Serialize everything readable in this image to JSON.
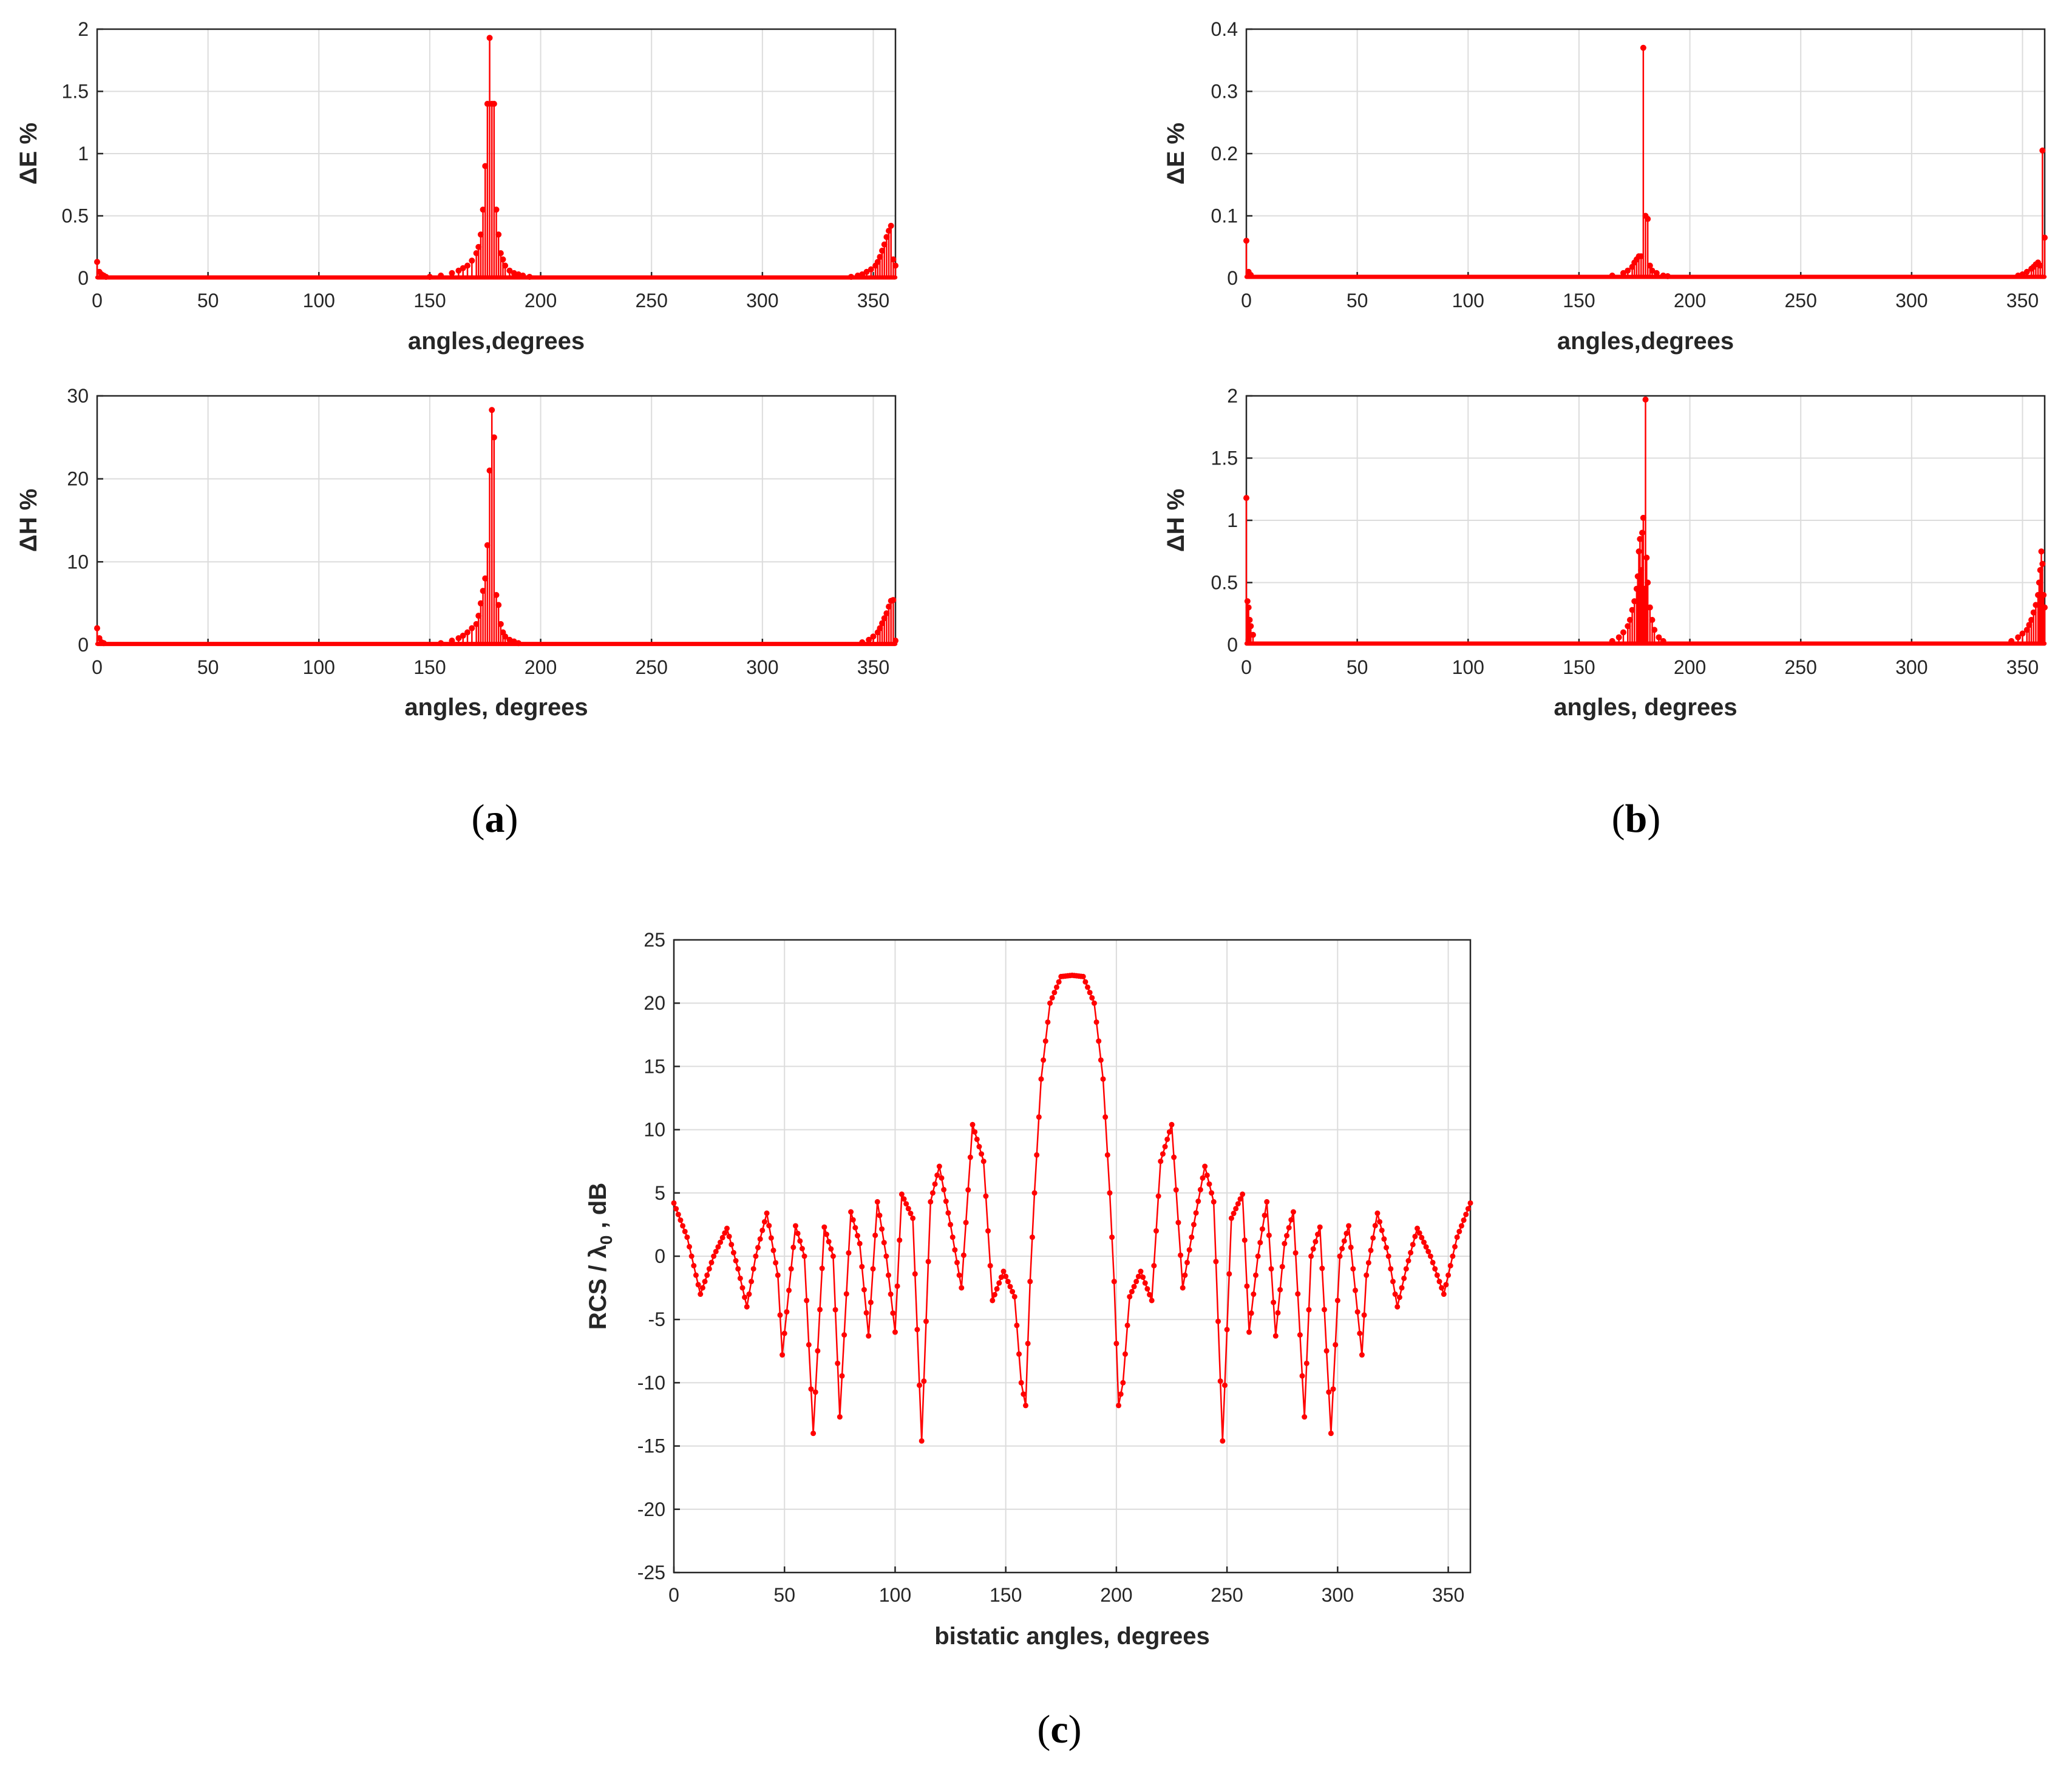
{
  "colors": {
    "series": "#ff0000",
    "grid": "#dcdcdc",
    "axis": "#262626"
  },
  "captions": {
    "a": "a",
    "b": "b",
    "c": "c"
  },
  "chart_data": [
    {
      "id": "a_top",
      "type": "stem",
      "panel": "a",
      "title": "",
      "xlabel": "angles,degrees",
      "ylabel": "ΔE %",
      "xlim": [
        0,
        360
      ],
      "ylim": [
        0,
        2
      ],
      "xticks": [
        0,
        50,
        100,
        150,
        200,
        250,
        300,
        350
      ],
      "yticks": [
        0,
        0.5,
        1,
        1.5,
        2
      ],
      "ytick_labels": [
        "0",
        "0.5",
        "1",
        "1.5",
        "2"
      ],
      "baseline": 0.005,
      "series": [
        {
          "name": "ΔE % (a)",
          "x": [
            0,
            1,
            2,
            3,
            4,
            150,
            155,
            160,
            163,
            165,
            167,
            169,
            171,
            172,
            173,
            174,
            175,
            176,
            177,
            178,
            179,
            180,
            181,
            182,
            183,
            184,
            186,
            188,
            190,
            192,
            195,
            340,
            343,
            345,
            347,
            349,
            351,
            352,
            353,
            354,
            355,
            356,
            357,
            358,
            359,
            360
          ],
          "y": [
            0.13,
            0.05,
            0.03,
            0.02,
            0.01,
            0.01,
            0.02,
            0.04,
            0.06,
            0.08,
            0.1,
            0.14,
            0.2,
            0.25,
            0.35,
            0.55,
            0.9,
            1.4,
            1.93,
            1.4,
            1.4,
            0.55,
            0.35,
            0.2,
            0.15,
            0.1,
            0.06,
            0.04,
            0.03,
            0.02,
            0.01,
            0.01,
            0.02,
            0.03,
            0.05,
            0.07,
            0.1,
            0.13,
            0.17,
            0.22,
            0.27,
            0.33,
            0.38,
            0.42,
            0.15,
            0.1
          ]
        }
      ]
    },
    {
      "id": "a_bottom",
      "type": "stem",
      "panel": "a",
      "title": "",
      "xlabel": "angles, degrees",
      "ylabel": "ΔH %",
      "xlim": [
        0,
        360
      ],
      "ylim": [
        0,
        30
      ],
      "xticks": [
        0,
        50,
        100,
        150,
        200,
        250,
        300,
        350
      ],
      "yticks": [
        0,
        10,
        20,
        30
      ],
      "ytick_labels": [
        "0",
        "10",
        "20",
        "30"
      ],
      "baseline": 0.1,
      "series": [
        {
          "name": "ΔH % (a)",
          "x": [
            0,
            1,
            2,
            3,
            155,
            160,
            163,
            165,
            167,
            169,
            171,
            172,
            173,
            174,
            175,
            176,
            177,
            178,
            179,
            180,
            181,
            182,
            183,
            184,
            186,
            188,
            190,
            345,
            348,
            350,
            352,
            353,
            354,
            355,
            356,
            357,
            358,
            359,
            360
          ],
          "y": [
            2,
            0.8,
            0.3,
            0.2,
            0.2,
            0.5,
            0.8,
            1.1,
            1.5,
            2,
            2.5,
            3.5,
            5,
            6.5,
            8,
            12,
            21,
            28.3,
            25,
            6,
            4.8,
            2.5,
            1.5,
            1,
            0.6,
            0.4,
            0.2,
            0.3,
            0.6,
            1,
            1.5,
            2,
            2.6,
            3.2,
            3.8,
            4.6,
            5.3,
            5.4,
            0.5
          ]
        }
      ]
    },
    {
      "id": "b_top",
      "type": "stem",
      "panel": "b",
      "title": "",
      "xlabel": "angles,degrees",
      "ylabel": "ΔE %",
      "xlim": [
        0,
        360
      ],
      "ylim": [
        0,
        0.4
      ],
      "xticks": [
        0,
        50,
        100,
        150,
        200,
        250,
        300,
        350
      ],
      "yticks": [
        0,
        0.1,
        0.2,
        0.3,
        0.4
      ],
      "ytick_labels": [
        "0",
        "0.1",
        "0.2",
        "0.3",
        "0.4"
      ],
      "baseline": 0.002,
      "series": [
        {
          "name": "ΔE % (b)",
          "x": [
            0,
            1,
            2,
            165,
            170,
            172,
            174,
            175,
            176,
            177,
            178,
            179,
            180,
            181,
            182,
            183,
            185,
            188,
            190,
            348,
            350,
            352,
            354,
            355,
            356,
            357,
            358,
            359,
            360
          ],
          "y": [
            0.06,
            0.01,
            0.005,
            0.004,
            0.008,
            0.012,
            0.018,
            0.025,
            0.03,
            0.035,
            0.035,
            0.37,
            0.1,
            0.095,
            0.02,
            0.012,
            0.008,
            0.004,
            0.003,
            0.004,
            0.006,
            0.01,
            0.015,
            0.018,
            0.022,
            0.025,
            0.02,
            0.205,
            0.065
          ]
        }
      ]
    },
    {
      "id": "b_bottom",
      "type": "stem",
      "panel": "b",
      "title": "",
      "xlabel": "angles, degrees",
      "ylabel": "ΔH %",
      "xlim": [
        0,
        360
      ],
      "ylim": [
        0,
        2
      ],
      "xticks": [
        0,
        50,
        100,
        150,
        200,
        250,
        300,
        350
      ],
      "yticks": [
        0,
        0.5,
        1,
        1.5,
        2
      ],
      "ytick_labels": [
        "0",
        "0.5",
        "1",
        "1.5",
        "2"
      ],
      "baseline": 0.01,
      "series": [
        {
          "name": "ΔH % (b)",
          "x": [
            0,
            0.5,
            1,
            1.5,
            2,
            3,
            165,
            168,
            170,
            172,
            173,
            174,
            175,
            176,
            176.5,
            177,
            177.5,
            178,
            178.5,
            179,
            179.5,
            180,
            180.5,
            181,
            182,
            183,
            184,
            186,
            188,
            345,
            348,
            350,
            352,
            353,
            354,
            355,
            356,
            357,
            357.5,
            358,
            358.5,
            359,
            359.5,
            360
          ],
          "y": [
            1.18,
            0.35,
            0.3,
            0.2,
            0.15,
            0.08,
            0.03,
            0.06,
            0.1,
            0.15,
            0.2,
            0.28,
            0.35,
            0.45,
            0.55,
            0.75,
            0.85,
            0.6,
            0.9,
            1.02,
            0.45,
            1.97,
            0.7,
            0.5,
            0.3,
            0.2,
            0.12,
            0.06,
            0.03,
            0.03,
            0.06,
            0.09,
            0.12,
            0.16,
            0.2,
            0.26,
            0.32,
            0.4,
            0.5,
            0.6,
            0.75,
            0.65,
            0.4,
            0.3
          ]
        }
      ]
    },
    {
      "id": "c",
      "type": "line",
      "panel": "c",
      "title": "",
      "xlabel": "bistatic angles, degrees",
      "ylabel": "RCS / λ",
      "ylabel_sub": "0",
      "ylabel_suffix": ", dB",
      "xlim": [
        0,
        360
      ],
      "ylim": [
        -25,
        25
      ],
      "xticks": [
        0,
        50,
        100,
        150,
        200,
        250,
        300,
        350
      ],
      "yticks": [
        -25,
        -20,
        -15,
        -10,
        -5,
        0,
        5,
        10,
        15,
        20,
        25
      ],
      "ytick_labels": [
        "-25",
        "-20",
        "-15",
        "-10",
        "-5",
        "0",
        "5",
        "10",
        "15",
        "20",
        "25"
      ],
      "sample_step_deg": 1,
      "series": [
        {
          "name": "RCS (c)",
          "x": [
            0,
            6,
            12,
            18,
            24,
            29,
            33,
            37,
            42,
            47,
            49,
            55,
            59,
            63,
            68,
            72,
            75,
            80,
            84,
            88,
            92,
            96,
            100,
            103,
            108,
            112,
            116,
            120,
            125,
            130,
            135,
            140,
            144,
            149,
            154,
            157,
            159,
            161,
            163,
            166,
            170,
            175,
            180
          ],
          "y": [
            4.2,
            1.5,
            -3,
            0,
            2.2,
            -1,
            -4,
            0,
            3.4,
            -1.5,
            -7.8,
            2.4,
            0,
            -14,
            2.3,
            0,
            -12.7,
            3.5,
            1,
            -6.3,
            4.3,
            0,
            -6,
            4.9,
            3,
            -14.6,
            4.3,
            7.1,
            2.5,
            -2.5,
            10.4,
            7.5,
            -3.5,
            -1.2,
            -3.2,
            -10,
            -11.8,
            -2,
            5,
            14,
            20,
            22.1,
            22.2
          ]
        }
      ]
    }
  ]
}
